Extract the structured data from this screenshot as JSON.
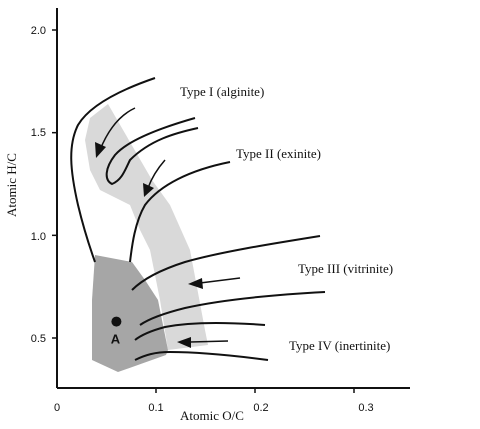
{
  "chart_data": {
    "type": "line",
    "title": "",
    "xlabel": "Atomic O/C",
    "ylabel": "Atomic H/C",
    "xlim": [
      0,
      0.35
    ],
    "ylim": [
      0.3,
      2.1
    ],
    "x_ticks": [
      "0",
      "0.1",
      "0.2",
      "0.3"
    ],
    "y_ticks": [
      "2.0",
      "1.5",
      "1.0",
      "0.5"
    ],
    "series": [
      {
        "name": "Type I (alginite)",
        "x": [
          0.095,
          0.06,
          0.03,
          0.02,
          0.025,
          0.035,
          0.045
        ],
        "y": [
          1.75,
          1.68,
          1.58,
          1.45,
          1.2,
          1.0,
          0.9
        ]
      },
      {
        "name": "Type II (exinite)",
        "x": [
          0.135,
          0.1,
          0.07,
          0.055,
          0.06,
          0.075
        ],
        "y": [
          1.58,
          1.53,
          1.47,
          1.35,
          1.25,
          1.15
        ]
      },
      {
        "name": "Type III (vitrinite)",
        "x": [
          0.26,
          0.18,
          0.12,
          0.085,
          0.075
        ],
        "y": [
          0.99,
          0.92,
          0.82,
          0.7,
          0.68
        ]
      },
      {
        "name": "Type IV (inertinite)",
        "x": [
          0.2,
          0.14,
          0.105,
          0.085
        ],
        "y": [
          0.45,
          0.47,
          0.5,
          0.52
        ]
      }
    ],
    "point": {
      "label": "A",
      "x": 0.06,
      "y": 0.58
    },
    "colors": {
      "light_region": "#d9d9d9",
      "dark_region": "#a6a6a6",
      "lines": "#111111"
    }
  }
}
